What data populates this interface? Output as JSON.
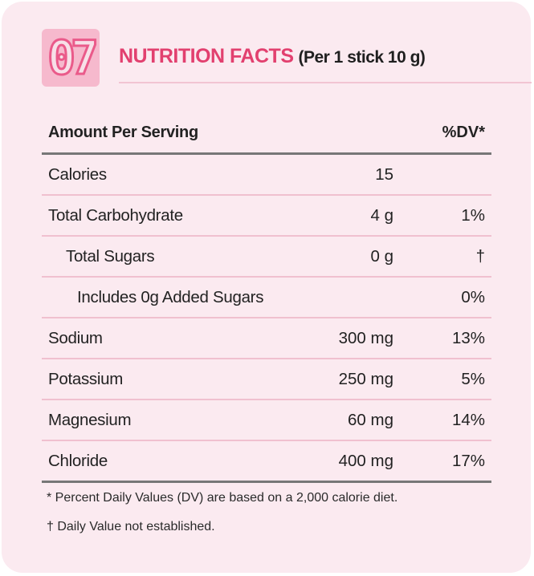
{
  "section_number": "07",
  "title": "NUTRITION FACTS",
  "subtitle": "(Per 1 stick 10 g)",
  "table": {
    "header_amount": "Amount Per Serving",
    "header_dv": "%DV*",
    "rows": [
      {
        "label": "Calories",
        "amount": "15",
        "dv": ""
      },
      {
        "label": "Total Carbohydrate",
        "amount": "4 g",
        "dv": "1%"
      },
      {
        "label": "Total Sugars",
        "amount": "0 g",
        "dv": "†"
      },
      {
        "label": "Includes 0g Added Sugars",
        "amount": "",
        "dv": "0%"
      },
      {
        "label": "Sodium",
        "amount": "300 mg",
        "dv": "13%"
      },
      {
        "label": "Potassium",
        "amount": "250 mg",
        "dv": "5%"
      },
      {
        "label": "Magnesium",
        "amount": "60 mg",
        "dv": "14%"
      },
      {
        "label": "Chloride",
        "amount": "400 mg",
        "dv": "17%"
      }
    ]
  },
  "footnotes": {
    "dv_note": "* Percent Daily Values (DV) are based on a 2,000 calorie diet.",
    "dagger_note": "† Daily Value not established."
  },
  "colors": {
    "accent": "#e2406f",
    "card_background": "#fbeaf0",
    "badge_fill": "#f6b9cd",
    "row_divider": "#f0c0cf"
  }
}
